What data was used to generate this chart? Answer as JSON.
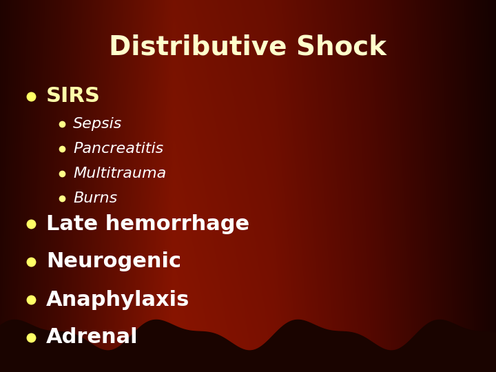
{
  "title": "Distributive Shock",
  "title_color": "#FFFFCC",
  "title_fontsize": 28,
  "title_fontweight": "bold",
  "bg_dark": "#2A0500",
  "bg_mid": "#7B1500",
  "bullet_yellow": "#FFFF66",
  "bullet1_text": "SIRS",
  "bullet1_color": "#FFFFAA",
  "bullet1_fontsize": 22,
  "bullet1_fontweight": "bold",
  "subbullet_color": "#FFFFFF",
  "subbullet_fontsize": 16,
  "subbullets": [
    "Sepsis",
    "Pancreatitis",
    "Multitrauma",
    "Burns"
  ],
  "main_bullets": [
    "Late hemorrhage",
    "Neurogenic",
    "Anaphylaxis",
    "Adrenal"
  ],
  "main_bullet_color": "#FFFFFF",
  "main_bullet_fontsize": 22,
  "main_bullet_fontweight": "bold",
  "wave_color": "#1A0400",
  "fig_width": 7.2,
  "fig_height": 5.4,
  "dpi": 100
}
